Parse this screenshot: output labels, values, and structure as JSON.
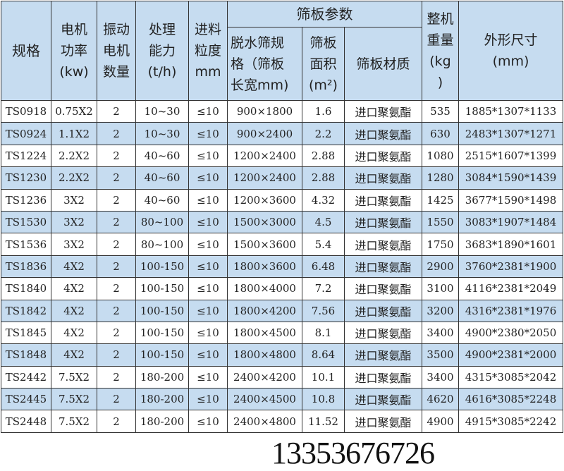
{
  "header": {
    "spec": "规格",
    "power": [
      "电机",
      "功率",
      "(kw)"
    ],
    "motors": [
      "振动",
      "电机",
      "数量"
    ],
    "capacity": [
      "处理",
      "能力",
      "(t/h)"
    ],
    "feed": [
      "进料",
      "粒度",
      "mm"
    ],
    "screen_group": "筛板参数",
    "screen_size": [
      "脱水筛规",
      "格（筛板",
      "长宽mm)"
    ],
    "screen_area": [
      "筛板",
      "面积",
      "(m²)"
    ],
    "screen_material": "筛板材质",
    "weight": [
      "整机",
      "重量",
      "(kg",
      ")"
    ],
    "dimensions": [
      "外形尺寸",
      "(mm)"
    ]
  },
  "rows": [
    [
      "TS0918",
      "0.75X2",
      "2",
      "10~30",
      "≤10",
      "900×1800",
      "1.6",
      "进口聚氨酯",
      "535",
      "1885*1307*1133"
    ],
    [
      "TS0924",
      "1.1X2",
      "2",
      "10~30",
      "≤10",
      "900×2400",
      "2.2",
      "进口聚氨酯",
      "630",
      "2483*1307*1271"
    ],
    [
      "TS1224",
      "2.2X2",
      "2",
      "40~60",
      "≤10",
      "1200×2400",
      "2.88",
      "进口聚氨酯",
      "1080",
      "2515*1607*1399"
    ],
    [
      "TS1230",
      "2.2X2",
      "2",
      "40~60",
      "≤10",
      "1200×2400",
      "2.88",
      "进口聚氨酯",
      "1280",
      "3084*1590*1439"
    ],
    [
      "TS1236",
      "3X2",
      "2",
      "40~60",
      "≤10",
      "1200×3600",
      "4.32",
      "进口聚氨酯",
      "1425",
      "3677*1590*1498"
    ],
    [
      "TS1530",
      "3X2",
      "2",
      "80~100",
      "≤10",
      "1500×3000",
      "4.5",
      "进口聚氨酯",
      "1550",
      "3083*1907*1484"
    ],
    [
      "TS1536",
      "3X2",
      "2",
      "80~100",
      "≤10",
      "1500×3600",
      "5.4",
      "进口聚氨酯",
      "1750",
      "3683*1890*1601"
    ],
    [
      "TS1836",
      "4X2",
      "2",
      "100-150",
      "≤10",
      "1800×3600",
      "6.48",
      "进口聚氨酯",
      "2900",
      "3760*2381*1900"
    ],
    [
      "TS1840",
      "4X2",
      "2",
      "100-150",
      "≤10",
      "1800×4000",
      "7.2",
      "进口聚氨酯",
      "3100",
      "4116*2381*2049"
    ],
    [
      "TS1842",
      "4X2",
      "2",
      "100-150",
      "≤10",
      "1800×4200",
      "7.56",
      "进口聚氨酯",
      "3200",
      "4316*2381*1976"
    ],
    [
      "TS1845",
      "4X2",
      "2",
      "100-150",
      "≤10",
      "1800×4500",
      "8.1",
      "进口聚氨酯",
      "3400",
      "4900*2380*2050"
    ],
    [
      "TS1848",
      "4X2",
      "2",
      "100-150",
      "≤10",
      "1800×4800",
      "8.64",
      "进口聚氨酯",
      "3500",
      "4900*2381*2000"
    ],
    [
      "TS2442",
      "7.5X2",
      "2",
      "180-200",
      "≤10",
      "2400×4200",
      "10.1",
      "进口聚氨酯",
      "3400",
      "4315*3085*2042"
    ],
    [
      "TS2445",
      "7.5X2",
      "2",
      "180-200",
      "≤10",
      "2400×4500",
      "10.8",
      "进口聚氨酯",
      "4620",
      "4616*3085*2248"
    ],
    [
      "TS2448",
      "7.5X2",
      "2",
      "180-200",
      "≤10",
      "2400×4800",
      "11.52",
      "进口聚氨酯",
      "4900",
      "4915*3085*2242"
    ]
  ],
  "watermark": "13353676726",
  "colors": {
    "header_bg": "#c6dcf0",
    "alt_row_bg": "#c6dcf0",
    "border": "#333333"
  }
}
